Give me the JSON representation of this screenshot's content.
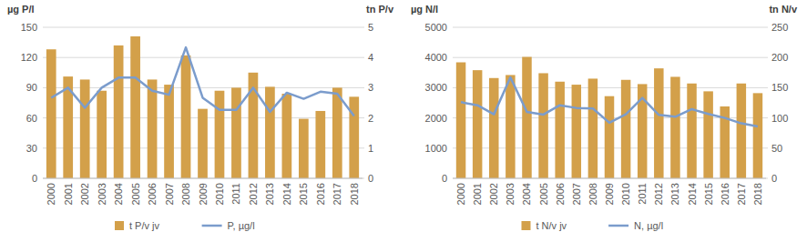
{
  "chart_data": [
    {
      "type": "bar",
      "y_label": "µg P/l",
      "y2_label": "tn P/v",
      "categories": [
        "2000",
        "2001",
        "2002",
        "2003",
        "2004",
        "2005",
        "2006",
        "2007",
        "2008",
        "2009",
        "2010",
        "2011",
        "2012",
        "2013",
        "2014",
        "2015",
        "2016",
        "2017",
        "2018"
      ],
      "series": [
        {
          "name": "t P/v jv",
          "type": "bar",
          "axis": "y2",
          "color": "#d3a04a",
          "values": [
            4.27,
            3.37,
            3.27,
            2.9,
            4.4,
            4.7,
            3.27,
            3.1,
            4.07,
            2.3,
            2.9,
            3.0,
            3.5,
            3.03,
            2.8,
            1.97,
            2.23,
            3.0,
            2.7
          ]
        },
        {
          "name": "P, µg/l",
          "type": "line",
          "axis": "y",
          "color": "#7b9ccc",
          "values": [
            80,
            90,
            70,
            90,
            100,
            100,
            87,
            83,
            130,
            80,
            68,
            68,
            90,
            66,
            85,
            79,
            86,
            84,
            62
          ]
        }
      ],
      "ylim": [
        0,
        150
      ],
      "yticks": [
        0,
        30,
        60,
        90,
        120,
        150
      ],
      "y2lim": [
        0,
        5
      ],
      "y2ticks": [
        0,
        1,
        2,
        3,
        4,
        5
      ],
      "grid": true,
      "legend": "bottom"
    },
    {
      "type": "bar",
      "y_label": "µg N/l",
      "y2_label": "tn N/v",
      "categories": [
        "2000",
        "2001",
        "2002",
        "2003",
        "2004",
        "2005",
        "2006",
        "2007",
        "2008",
        "2009",
        "2010",
        "2011",
        "2012",
        "2013",
        "2014",
        "2015",
        "2016",
        "2017",
        "2018"
      ],
      "series": [
        {
          "name": "t N/v jv",
          "type": "bar",
          "axis": "y2",
          "color": "#d3a04a",
          "values": [
            192,
            179,
            166,
            171,
            201,
            174,
            160,
            155,
            165,
            136,
            163,
            156,
            182,
            168,
            157,
            144,
            119,
            157,
            141
          ]
        },
        {
          "name": "N, µg/l",
          "type": "line",
          "axis": "y",
          "color": "#7b9ccc",
          "values": [
            2520,
            2420,
            2120,
            3340,
            2200,
            2110,
            2420,
            2330,
            2310,
            1840,
            2120,
            2660,
            2100,
            2040,
            2290,
            2130,
            2000,
            1820,
            1720
          ]
        }
      ],
      "ylim": [
        0,
        5000
      ],
      "yticks": [
        0,
        1000,
        2000,
        3000,
        4000,
        5000
      ],
      "y2lim": [
        0,
        250
      ],
      "y2ticks": [
        0,
        50,
        100,
        150,
        200,
        250
      ],
      "grid": true,
      "legend": "bottom"
    }
  ]
}
